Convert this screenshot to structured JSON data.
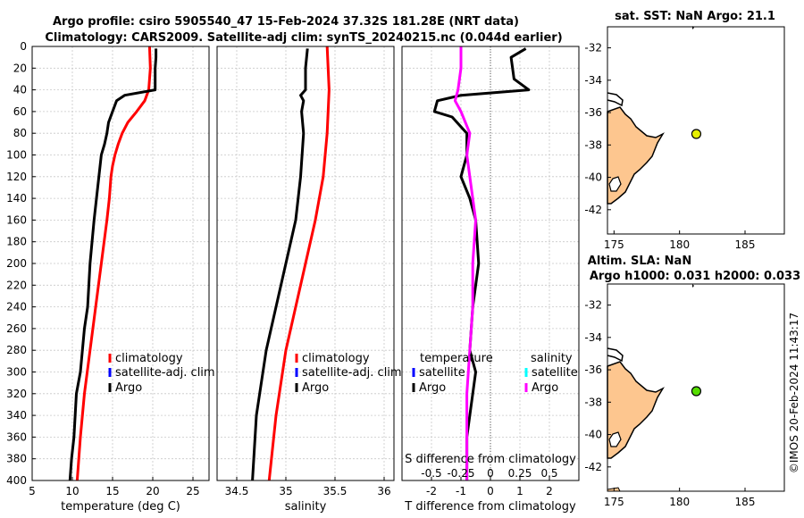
{
  "header": {
    "title_line1": "Argo profile: csiro 5905540_47 15-Feb-2024 37.32S 181.28E (NRT data)",
    "title_line2": "Climatology: CARS2009. Satellite-adj clim: synTS_20240215.nc (0.044d earlier)"
  },
  "timestamp": "©IMOS 20-Feb-2024 11:43:17",
  "colors": {
    "climatology": "#ff0000",
    "satellite_adj": "#0000ff",
    "argo": "#000000",
    "argo_s_diff": "#ff00ff",
    "satellite_s": "#00ffff",
    "land": "#fdc68f",
    "sst_marker": "#e6f000",
    "sla_marker": "#55dd00"
  },
  "chart_data": [
    {
      "id": "temperature",
      "type": "line",
      "xlabel": "temperature (deg C)",
      "ylabel": "",
      "xlim": [
        5,
        27
      ],
      "ylim": [
        0,
        400
      ],
      "y_reversed": true,
      "xticks": [
        5,
        10,
        15,
        20,
        25
      ],
      "yticks": [
        0,
        20,
        40,
        60,
        80,
        100,
        120,
        140,
        160,
        180,
        200,
        220,
        240,
        260,
        280,
        300,
        320,
        340,
        360,
        380,
        400
      ],
      "grid": true,
      "legend": [
        "climatology",
        "satellite-adj. clim",
        "Argo"
      ],
      "legend_position": "lower-right",
      "series": [
        {
          "name": "climatology",
          "color": "#ff0000",
          "x": [
            19.6,
            19.7,
            19.5,
            19.0,
            18.0,
            16.9,
            16.2,
            15.7,
            15.3,
            15.0,
            14.8,
            14.6,
            14.3,
            13.6,
            12.9,
            12.2,
            11.5,
            11.0,
            10.6
          ],
          "y": [
            0,
            20,
            40,
            50,
            60,
            70,
            80,
            90,
            100,
            110,
            120,
            140,
            160,
            200,
            240,
            280,
            320,
            360,
            400
          ]
        },
        {
          "name": "Argo",
          "color": "#000000",
          "x": [
            20.4,
            20.4,
            20.3,
            20.3,
            16.5,
            15.5,
            15.0,
            14.5,
            14.3,
            14.0,
            13.6,
            13.3,
            13.0,
            12.7,
            12.2,
            11.9,
            11.5,
            11.0,
            10.5,
            10.2,
            9.9,
            9.7
          ],
          "y": [
            2,
            10,
            20,
            40,
            45,
            50,
            60,
            70,
            80,
            90,
            100,
            120,
            140,
            160,
            200,
            240,
            260,
            300,
            320,
            360,
            380,
            400
          ]
        }
      ]
    },
    {
      "id": "salinity",
      "type": "line",
      "xlabel": "salinity",
      "ylabel": "",
      "xlim": [
        34.3,
        36.1
      ],
      "ylim": [
        0,
        400
      ],
      "y_reversed": true,
      "xticks": [
        34.5,
        35,
        35.5,
        36
      ],
      "grid": true,
      "legend": [
        "climatology",
        "satellite-adj. clim",
        "Argo"
      ],
      "legend_position": "lower-right",
      "series": [
        {
          "name": "climatology",
          "color": "#ff0000",
          "x": [
            35.42,
            35.43,
            35.44,
            35.43,
            35.42,
            35.4,
            35.38,
            35.3,
            35.2,
            35.1,
            35.0,
            34.9,
            34.83
          ],
          "y": [
            0,
            20,
            40,
            60,
            80,
            100,
            120,
            160,
            200,
            240,
            280,
            340,
            400
          ]
        },
        {
          "name": "Argo",
          "color": "#000000",
          "x": [
            35.22,
            35.2,
            35.2,
            35.15,
            35.18,
            35.16,
            35.18,
            35.15,
            35.1,
            35.0,
            34.9,
            34.8,
            34.7,
            34.66
          ],
          "y": [
            2,
            20,
            40,
            45,
            50,
            60,
            80,
            120,
            160,
            200,
            240,
            280,
            340,
            400
          ]
        }
      ]
    },
    {
      "id": "difference",
      "type": "line",
      "xlabel": "T difference from climatology",
      "x2label": "S difference from climatology",
      "ylabel": "",
      "xlim": [
        -3,
        3
      ],
      "ylim": [
        0,
        400
      ],
      "y_reversed": true,
      "xticks": [
        -2,
        -1,
        0,
        1,
        2
      ],
      "x2ticks": [
        "-0.5",
        "-0.25",
        "0",
        "0.25",
        "0.5"
      ],
      "x2tick_values": [
        -2,
        -1,
        0,
        1,
        2
      ],
      "grid": true,
      "legend_groups": [
        {
          "heading": "temperature",
          "entries": [
            "satellite",
            "Argo"
          ]
        },
        {
          "heading": "salinity",
          "entries": [
            "satellite",
            "Argo"
          ]
        }
      ],
      "legend_position": "lower-left",
      "series": [
        {
          "name": "T difference Argo",
          "color": "#000000",
          "x": [
            1.2,
            0.7,
            0.8,
            1.3,
            -1.0,
            -1.8,
            -1.9,
            -1.3,
            -0.8,
            -0.8,
            -1.0,
            -0.7,
            -0.5,
            -0.4,
            -0.6,
            -0.7,
            -0.5,
            -0.6,
            -0.7,
            -0.8,
            -0.8
          ],
          "y": [
            2,
            10,
            30,
            40,
            45,
            50,
            60,
            65,
            80,
            100,
            120,
            140,
            160,
            200,
            240,
            280,
            300,
            320,
            340,
            360,
            400
          ]
        },
        {
          "name": "S difference Argo",
          "color": "#ff00ff",
          "x": [
            -1.0,
            -1.0,
            -1.1,
            -1.2,
            -1.0,
            -0.7,
            -0.8,
            -0.5,
            -0.6,
            -0.6,
            -0.7,
            -0.8,
            -0.8,
            -0.8
          ],
          "y": [
            0,
            20,
            40,
            50,
            60,
            80,
            100,
            160,
            200,
            240,
            280,
            320,
            360,
            400
          ]
        }
      ]
    },
    {
      "id": "sst_map",
      "type": "scatter",
      "title": "sat. SST: NaN Argo: 21.1",
      "xlim": [
        174.5,
        188
      ],
      "ylim": [
        -43.5,
        -30.7
      ],
      "xticks": [
        175,
        180,
        185
      ],
      "yticks": [
        -42,
        -40,
        -38,
        -36,
        -34,
        -32
      ],
      "ytick_labels": [
        "-42",
        "-40",
        "-38",
        "-36",
        "-34",
        "-32"
      ],
      "marker": {
        "lon": 181.28,
        "lat": -37.32,
        "color": "#e6f000"
      }
    },
    {
      "id": "sla_map",
      "type": "scatter",
      "title_line1": "Altim. SLA: NaN",
      "title_line2": "Argo h1000: 0.031 h2000: 0.033",
      "xlim": [
        174.5,
        188
      ],
      "ylim": [
        -43.5,
        -30.7
      ],
      "xticks": [
        175,
        180,
        185
      ],
      "yticks": [
        -42,
        -40,
        -38,
        -36,
        -34,
        -32
      ],
      "ytick_labels": [
        "-42",
        "-40",
        "-38",
        "-36",
        "-34",
        "-32"
      ],
      "marker": {
        "lon": 181.28,
        "lat": -37.32,
        "color": "#55dd00"
      }
    }
  ]
}
